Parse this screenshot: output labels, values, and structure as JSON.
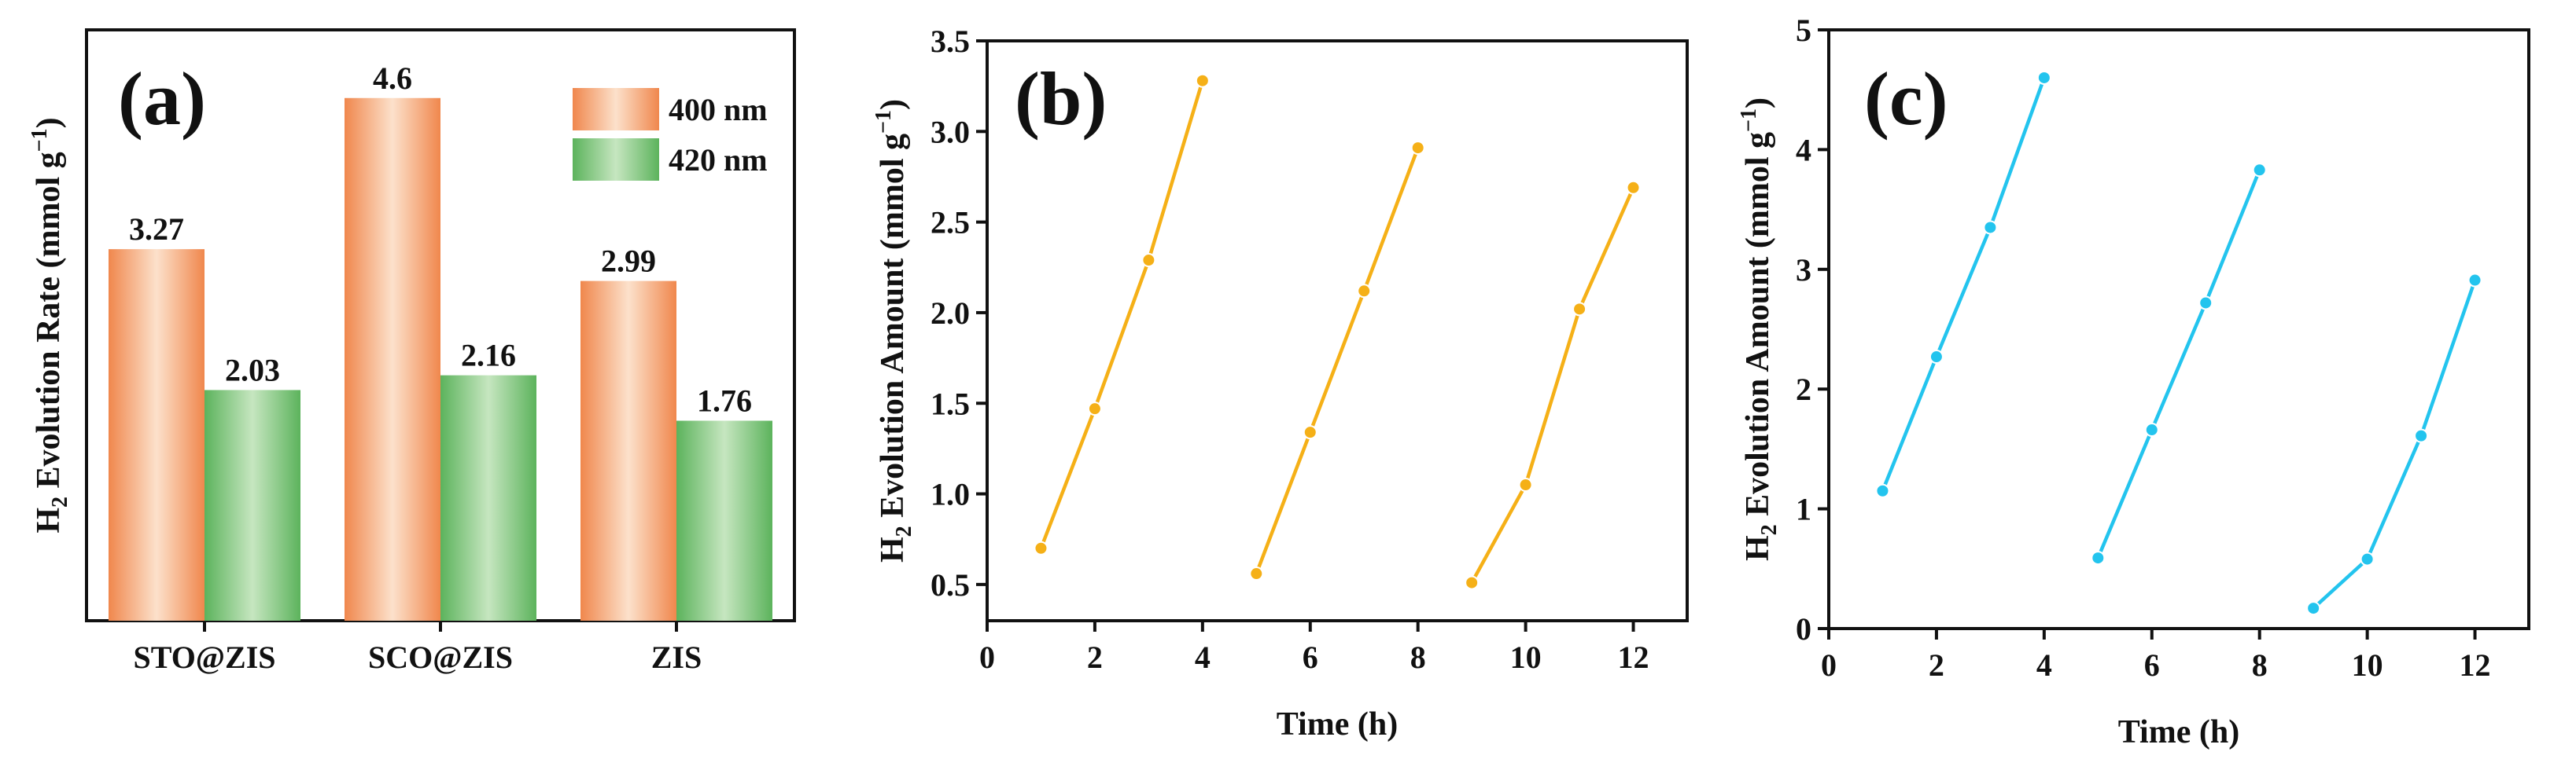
{
  "chart_data": [
    {
      "panel": "(a)",
      "type": "bar",
      "categories": [
        "STO@ZIS",
        "SCO@ZIS",
        "ZIS"
      ],
      "series": [
        {
          "name": "400 nm",
          "values": [
            3.27,
            4.6,
            2.99
          ],
          "labels": [
            "3.27",
            "4.6",
            "2.99"
          ],
          "color": "#F0874D",
          "highlight": "#FCE1CB"
        },
        {
          "name": "420 nm",
          "values": [
            2.03,
            2.16,
            1.76
          ],
          "labels": [
            "2.03",
            "2.16",
            "1.76"
          ],
          "color": "#5CB35C",
          "highlight": "#C6E6C0"
        }
      ],
      "ylabel_prefix": "H",
      "ylabel_sub": "2",
      "ylabel_main": " Evolution Rate (mmol g",
      "ylabel_sup": "−1",
      "ylabel_close": ")",
      "ylim": [
        0,
        5.2
      ],
      "legend_position": "top-right"
    },
    {
      "panel": "(b)",
      "type": "line",
      "color": "#F5B017",
      "x": [
        1,
        2,
        3,
        4,
        5,
        6,
        7,
        8,
        9,
        10,
        11,
        12
      ],
      "segments": [
        {
          "x": [
            1,
            2,
            3,
            4
          ],
          "y": [
            0.7,
            1.47,
            2.29,
            3.28
          ]
        },
        {
          "x": [
            5,
            6,
            7,
            8
          ],
          "y": [
            0.56,
            1.34,
            2.12,
            2.91
          ]
        },
        {
          "x": [
            9,
            10,
            11,
            12
          ],
          "y": [
            0.51,
            1.05,
            2.02,
            2.69
          ]
        }
      ],
      "xlabel": "Time (h)",
      "ylabel_prefix": "H",
      "ylabel_sub": "2",
      "ylabel_main": " Evolution Amount (mmol g",
      "ylabel_sup": "−1",
      "ylabel_close": ")",
      "xlim": [
        0,
        13
      ],
      "ylim": [
        0.3,
        3.5
      ],
      "xticks": [
        0,
        2,
        4,
        6,
        8,
        10,
        12
      ],
      "xtick_labels": [
        "0",
        "2",
        "4",
        "6",
        "8",
        "10",
        "12"
      ],
      "yticks": [
        0.5,
        1.0,
        1.5,
        2.0,
        2.5,
        3.0,
        3.5
      ],
      "ytick_labels": [
        "0.5",
        "1.0",
        "1.5",
        "2.0",
        "2.5",
        "3.0",
        "3.5"
      ]
    },
    {
      "panel": "(c)",
      "type": "line",
      "color": "#23C4EE",
      "x": [
        1,
        2,
        3,
        4,
        5,
        6,
        7,
        8,
        9,
        10,
        11,
        12
      ],
      "segments": [
        {
          "x": [
            1,
            2,
            3,
            4
          ],
          "y": [
            1.15,
            2.27,
            3.35,
            4.6
          ]
        },
        {
          "x": [
            5,
            6,
            7,
            8
          ],
          "y": [
            0.59,
            1.66,
            2.72,
            3.83
          ]
        },
        {
          "x": [
            9,
            10,
            11,
            12
          ],
          "y": [
            0.17,
            0.58,
            1.61,
            2.91
          ]
        }
      ],
      "xlabel": "Time (h)",
      "ylabel_prefix": "H",
      "ylabel_sub": "2",
      "ylabel_main": " Evolution Amount (mmol g",
      "ylabel_sup": "−1",
      "ylabel_close": ")",
      "xlim": [
        0,
        13
      ],
      "ylim": [
        0,
        5
      ],
      "xticks": [
        0,
        2,
        4,
        6,
        8,
        10,
        12
      ],
      "xtick_labels": [
        "0",
        "2",
        "4",
        "6",
        "8",
        "10",
        "12"
      ],
      "yticks": [
        0,
        1,
        2,
        3,
        4,
        5
      ],
      "ytick_labels": [
        "0",
        "1",
        "2",
        "3",
        "4",
        "5"
      ]
    }
  ]
}
